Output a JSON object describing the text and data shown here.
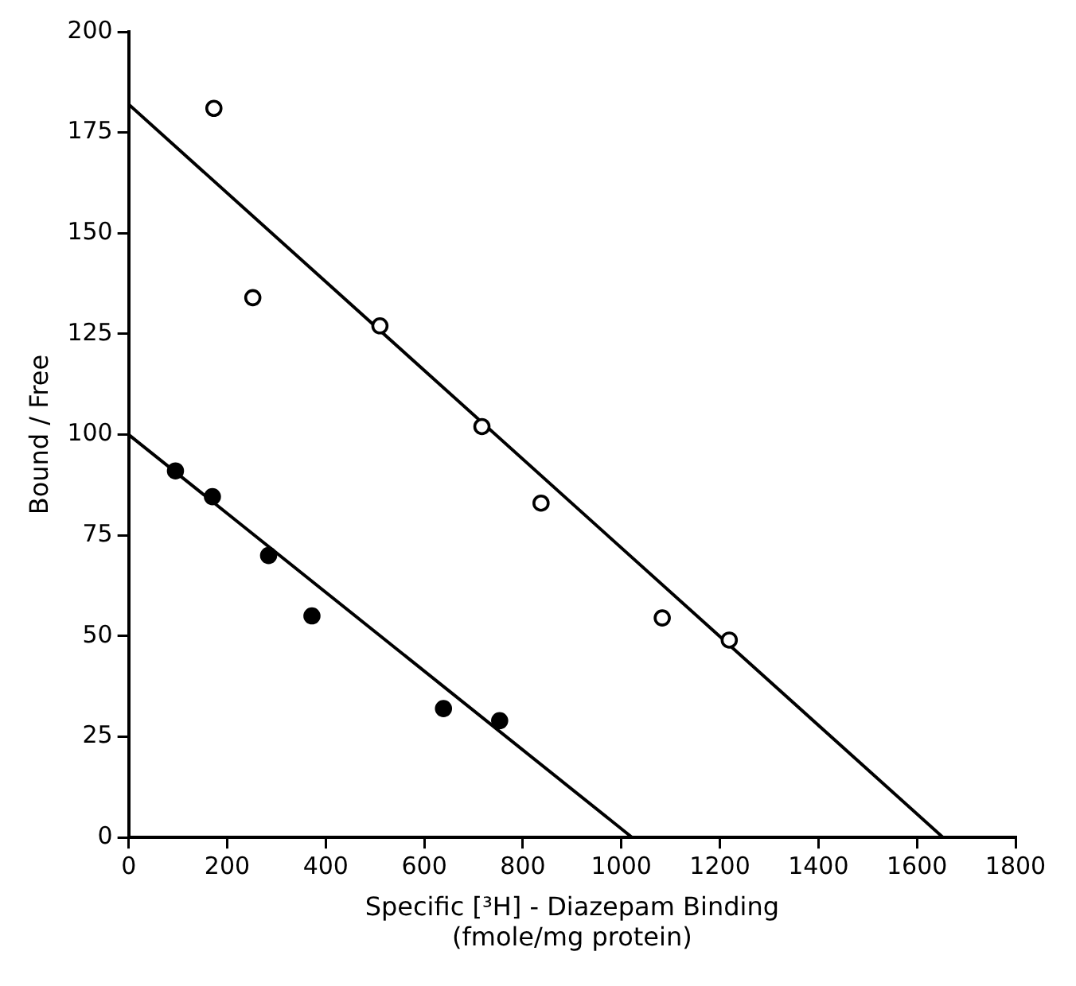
{
  "chart_data": {
    "type": "scatter",
    "xlabel": "Specific [³H] - Diazepam Binding\n(fmole/mg protein)",
    "ylabel": "Bound / Free",
    "xlim": [
      0,
      1800
    ],
    "ylim": [
      0,
      200
    ],
    "xticks": [
      0,
      200,
      400,
      600,
      800,
      1000,
      1200,
      1400,
      1600,
      1800
    ],
    "yticks": [
      0,
      25,
      50,
      75,
      100,
      125,
      150,
      175,
      200
    ],
    "grid": false,
    "legend": false,
    "series": [
      {
        "type": "scatter",
        "marker": "circle",
        "color": "#000000",
        "x": [
          173,
          252,
          510,
          717,
          837,
          1083,
          1219
        ],
        "values": [
          181,
          134,
          127,
          102,
          83,
          54.5,
          49
        ]
      },
      {
        "type": "scatter",
        "marker": "circle",
        "color": "#000000",
        "x": [
          95,
          170,
          284,
          372,
          639,
          753
        ],
        "values": [
          91,
          84.6,
          70,
          55,
          32,
          29
        ]
      },
      {
        "type": "line",
        "marker": "none",
        "line_style": "solid",
        "color": "#000000",
        "x": [
          0,
          1653
        ],
        "values": [
          182,
          0
        ]
      },
      {
        "type": "line",
        "marker": "none",
        "line_style": "solid",
        "color": "#000000",
        "x": [
          0,
          1022
        ],
        "values": [
          100,
          0
        ]
      }
    ]
  }
}
